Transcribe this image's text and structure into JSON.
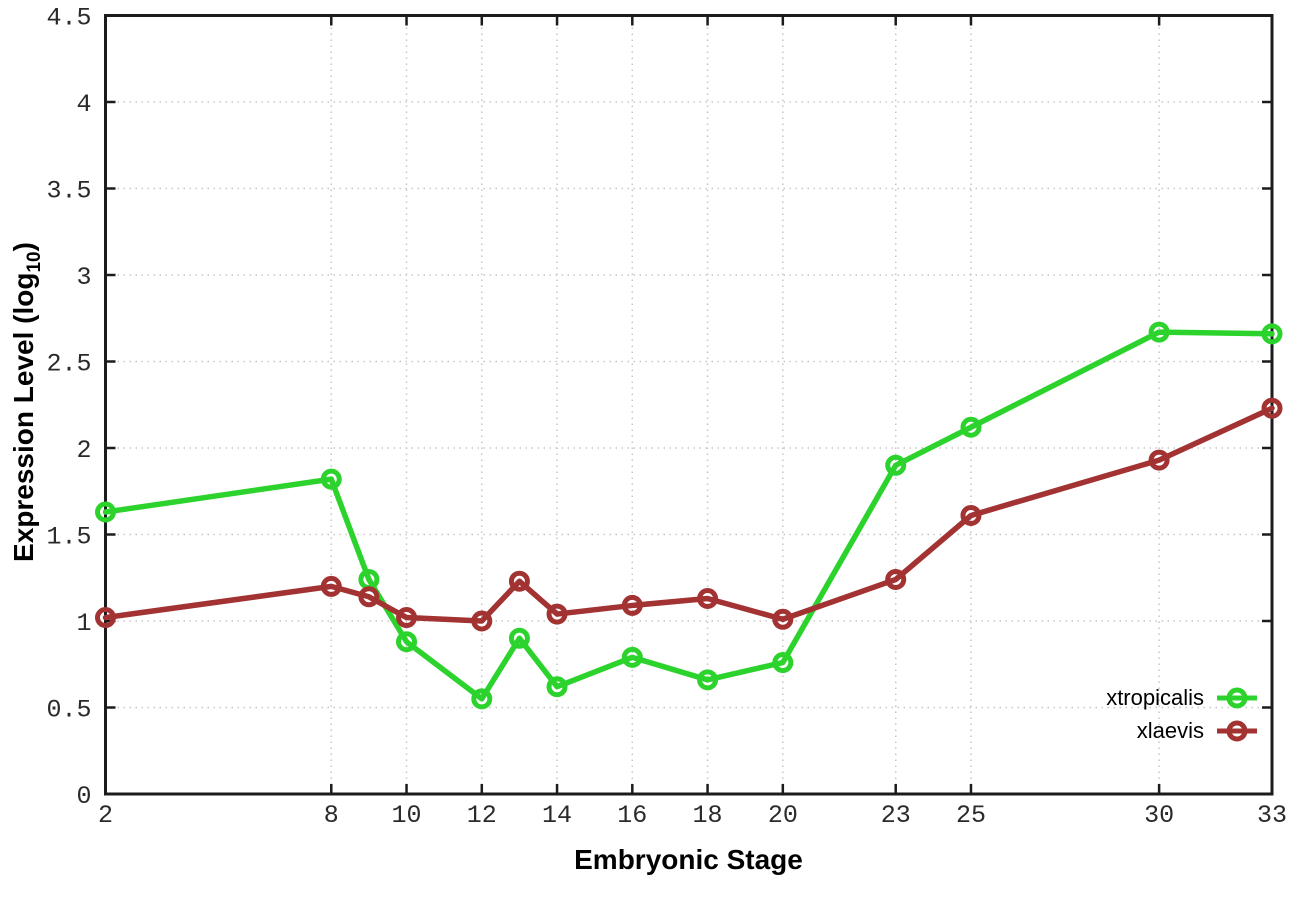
{
  "chart_data": {
    "type": "line",
    "title": "",
    "xlabel": "Embryonic Stage",
    "ylabel": "Expression Level (log10)",
    "ylabel_parts": {
      "prefix": "Expression Level (log",
      "sub": "10",
      "suffix": ")"
    },
    "xlim": [
      2,
      33
    ],
    "ylim": [
      0,
      4.5
    ],
    "grid": true,
    "legend_position": "inside-bottom-right",
    "x_ticks": [
      2,
      8,
      10,
      12,
      14,
      16,
      18,
      20,
      23,
      25,
      30,
      33
    ],
    "x_tick_labels": [
      "2",
      "8",
      "10",
      "12",
      "14",
      "16",
      "18",
      "20",
      "23",
      "25",
      "30",
      "33"
    ],
    "y_ticks": [
      0,
      0.5,
      1,
      1.5,
      2,
      2.5,
      3,
      3.5,
      4,
      4.5
    ],
    "y_tick_labels": [
      "0",
      "0.5",
      "1",
      "1.5",
      "2",
      "2.5",
      "3",
      "3.5",
      "4",
      "4.5"
    ],
    "x": [
      2,
      8,
      9,
      10,
      12,
      13,
      14,
      16,
      18,
      20,
      23,
      25,
      30,
      33
    ],
    "series": [
      {
        "name": "xtropicalis",
        "color": "#2cd32c",
        "values": [
          1.63,
          1.82,
          1.24,
          0.88,
          0.55,
          0.9,
          0.62,
          0.79,
          0.66,
          0.76,
          1.9,
          2.12,
          2.67,
          2.66
        ]
      },
      {
        "name": "xlaevis",
        "color": "#a33232",
        "values": [
          1.02,
          1.2,
          1.14,
          1.02,
          1.0,
          1.23,
          1.04,
          1.09,
          1.13,
          1.01,
          1.24,
          1.61,
          1.93,
          2.23
        ]
      }
    ],
    "colors": {
      "background": "#ffffff",
      "grid": "#c6c6c6",
      "axis": "#1c1c1c",
      "tick_label": "#2a2a2a"
    },
    "marker": "open-circle"
  }
}
